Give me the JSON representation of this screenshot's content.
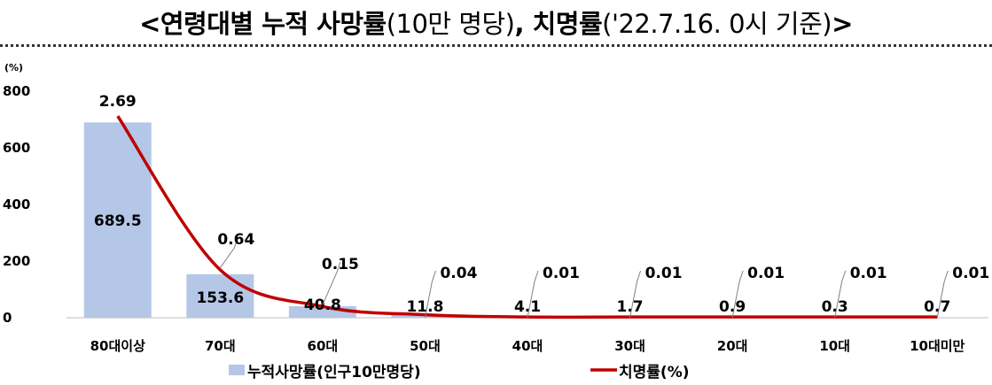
{
  "title": {
    "part1": "<연령대별 누적 사망률",
    "part2": "(10만 명당)",
    "part3": ", 치명률",
    "part4": "('22.7.16. 0시 기준)",
    "part5": ">"
  },
  "chart_data": {
    "type": "bar+line",
    "unit_label": "(%)",
    "categories": [
      "80대이상",
      "70대",
      "60대",
      "50대",
      "40대",
      "30대",
      "20대",
      "10대",
      "10대미만"
    ],
    "y_ticks": [
      0,
      200,
      400,
      600,
      800
    ],
    "ylim": [
      0,
      800
    ],
    "grid": false,
    "legend_position": "bottom",
    "series": [
      {
        "name": "누적사망률(인구10만명당)",
        "type": "bar",
        "color": "#b4c7e7",
        "values": [
          689.5,
          153.6,
          40.8,
          11.8,
          4.1,
          1.7,
          0.9,
          0.3,
          0.7
        ],
        "labels": [
          "689.5",
          "153.6",
          "40.8",
          "11.8",
          "4.1",
          "1.7",
          "0.9",
          "0.3",
          "0.7"
        ]
      },
      {
        "name": "치명률(%)",
        "type": "line",
        "color": "#c00000",
        "values": [
          2.69,
          0.64,
          0.15,
          0.04,
          0.01,
          0.01,
          0.01,
          0.01,
          0.01
        ],
        "labels": [
          "2.69",
          "0.64",
          "0.15",
          "0.04",
          "0.01",
          "0.01",
          "0.01",
          "0.01",
          "0.01"
        ]
      }
    ]
  }
}
